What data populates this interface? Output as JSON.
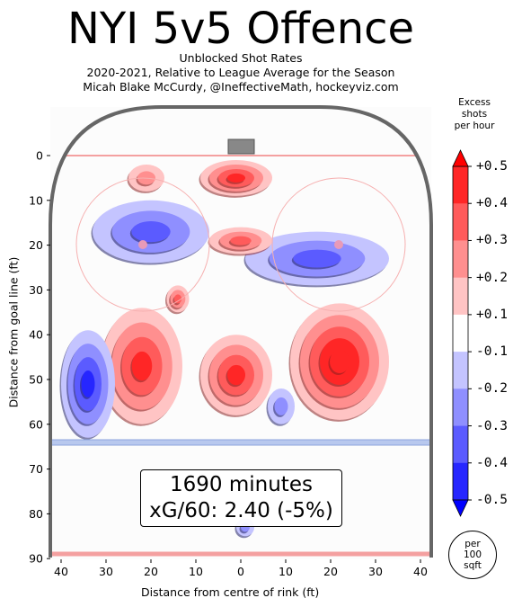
{
  "title": "NYI 5v5 Offence",
  "subtitle_lines": [
    "Unblocked Shot Rates",
    "2020-2021, Relative to League Average for the Season",
    "Micah Blake McCurdy, @IneffectiveMath, hockeyviz.com"
  ],
  "annotation": {
    "line1": "1690 minutes",
    "line2": "xG/60: 2.40 (-5%)"
  },
  "per_area": {
    "line1": "per",
    "line2": "100",
    "line3": "sqft"
  },
  "colorbar": {
    "title_lines": [
      "Excess",
      "shots",
      "per hour"
    ],
    "ticks": [
      "+0.5",
      "+0.4",
      "+0.3",
      "+0.2",
      "+0.1",
      "-0.1",
      "-0.2",
      "-0.3",
      "-0.4",
      "-0.5"
    ],
    "colors": [
      "#ff2626",
      "#ff5b5b",
      "#ff8f8f",
      "#ffc4c4",
      "#ffffff",
      "#c4c4ff",
      "#8f8fff",
      "#5b5bff",
      "#2626ff"
    ]
  },
  "chart_data": {
    "type": "heatmap",
    "title": "NYI 5v5 Offence",
    "xlabel": "Distance from centre of rink (ft)",
    "ylabel": "Distance from goal line (ft)",
    "xlim": [
      -43,
      43
    ],
    "ylim": [
      90,
      -11
    ],
    "x_ticks": [
      -40,
      -30,
      -20,
      -10,
      0,
      10,
      20,
      30,
      40
    ],
    "x_tick_labels": [
      "40",
      "30",
      "20",
      "10",
      "0",
      "10",
      "20",
      "30",
      "40"
    ],
    "y_ticks": [
      0,
      10,
      20,
      30,
      40,
      50,
      60,
      70,
      80,
      90
    ],
    "y_tick_labels": [
      "0",
      "10",
      "20",
      "30",
      "40",
      "50",
      "60",
      "70",
      "80",
      "90"
    ],
    "value_range": [
      -0.5,
      0.5
    ],
    "hotspots": [
      {
        "x": 22,
        "y": 46,
        "value": 0.55,
        "rx": 11,
        "ry": 13
      },
      {
        "x": -22,
        "y": 47,
        "value": 0.45,
        "rx": 9,
        "ry": 13
      },
      {
        "x": -1,
        "y": 49,
        "value": 0.4,
        "rx": 8,
        "ry": 9
      },
      {
        "x": -34,
        "y": 51,
        "value": -0.45,
        "rx": 6,
        "ry": 12
      },
      {
        "x": -20,
        "y": 17,
        "value": -0.35,
        "rx": 13,
        "ry": 7
      },
      {
        "x": 17,
        "y": 23,
        "value": -0.3,
        "rx": 16,
        "ry": 6
      },
      {
        "x": -1,
        "y": 5,
        "value": 0.4,
        "rx": 8,
        "ry": 4
      },
      {
        "x": 0,
        "y": 19,
        "value": 0.3,
        "rx": 7,
        "ry": 3
      },
      {
        "x": -14,
        "y": 32,
        "value": 0.3,
        "rx": 2.5,
        "ry": 3
      },
      {
        "x": -21,
        "y": 5,
        "value": 0.2,
        "rx": 4,
        "ry": 3
      },
      {
        "x": 9,
        "y": 56,
        "value": -0.2,
        "rx": 3,
        "ry": 4
      },
      {
        "x": 1,
        "y": 83,
        "value": -0.2,
        "rx": 2,
        "ry": 2
      }
    ]
  }
}
